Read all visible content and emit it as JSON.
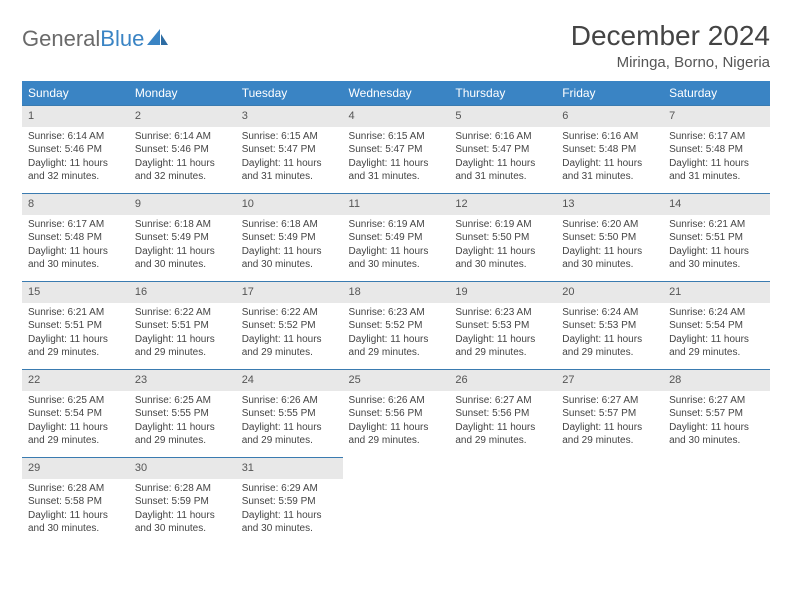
{
  "logo": {
    "text1": "General",
    "text2": "Blue"
  },
  "title": "December 2024",
  "location": "Miringa, Borno, Nigeria",
  "colors": {
    "header_bg": "#3a84c4",
    "daynum_bg": "#e8e8e8",
    "row_border": "#3a7bb0",
    "text": "#444444"
  },
  "weekdays": [
    "Sunday",
    "Monday",
    "Tuesday",
    "Wednesday",
    "Thursday",
    "Friday",
    "Saturday"
  ],
  "weeks": [
    [
      {
        "n": "1",
        "sr": "Sunrise: 6:14 AM",
        "ss": "Sunset: 5:46 PM",
        "dl": "Daylight: 11 hours and 32 minutes."
      },
      {
        "n": "2",
        "sr": "Sunrise: 6:14 AM",
        "ss": "Sunset: 5:46 PM",
        "dl": "Daylight: 11 hours and 32 minutes."
      },
      {
        "n": "3",
        "sr": "Sunrise: 6:15 AM",
        "ss": "Sunset: 5:47 PM",
        "dl": "Daylight: 11 hours and 31 minutes."
      },
      {
        "n": "4",
        "sr": "Sunrise: 6:15 AM",
        "ss": "Sunset: 5:47 PM",
        "dl": "Daylight: 11 hours and 31 minutes."
      },
      {
        "n": "5",
        "sr": "Sunrise: 6:16 AM",
        "ss": "Sunset: 5:47 PM",
        "dl": "Daylight: 11 hours and 31 minutes."
      },
      {
        "n": "6",
        "sr": "Sunrise: 6:16 AM",
        "ss": "Sunset: 5:48 PM",
        "dl": "Daylight: 11 hours and 31 minutes."
      },
      {
        "n": "7",
        "sr": "Sunrise: 6:17 AM",
        "ss": "Sunset: 5:48 PM",
        "dl": "Daylight: 11 hours and 31 minutes."
      }
    ],
    [
      {
        "n": "8",
        "sr": "Sunrise: 6:17 AM",
        "ss": "Sunset: 5:48 PM",
        "dl": "Daylight: 11 hours and 30 minutes."
      },
      {
        "n": "9",
        "sr": "Sunrise: 6:18 AM",
        "ss": "Sunset: 5:49 PM",
        "dl": "Daylight: 11 hours and 30 minutes."
      },
      {
        "n": "10",
        "sr": "Sunrise: 6:18 AM",
        "ss": "Sunset: 5:49 PM",
        "dl": "Daylight: 11 hours and 30 minutes."
      },
      {
        "n": "11",
        "sr": "Sunrise: 6:19 AM",
        "ss": "Sunset: 5:49 PM",
        "dl": "Daylight: 11 hours and 30 minutes."
      },
      {
        "n": "12",
        "sr": "Sunrise: 6:19 AM",
        "ss": "Sunset: 5:50 PM",
        "dl": "Daylight: 11 hours and 30 minutes."
      },
      {
        "n": "13",
        "sr": "Sunrise: 6:20 AM",
        "ss": "Sunset: 5:50 PM",
        "dl": "Daylight: 11 hours and 30 minutes."
      },
      {
        "n": "14",
        "sr": "Sunrise: 6:21 AM",
        "ss": "Sunset: 5:51 PM",
        "dl": "Daylight: 11 hours and 30 minutes."
      }
    ],
    [
      {
        "n": "15",
        "sr": "Sunrise: 6:21 AM",
        "ss": "Sunset: 5:51 PM",
        "dl": "Daylight: 11 hours and 29 minutes."
      },
      {
        "n": "16",
        "sr": "Sunrise: 6:22 AM",
        "ss": "Sunset: 5:51 PM",
        "dl": "Daylight: 11 hours and 29 minutes."
      },
      {
        "n": "17",
        "sr": "Sunrise: 6:22 AM",
        "ss": "Sunset: 5:52 PM",
        "dl": "Daylight: 11 hours and 29 minutes."
      },
      {
        "n": "18",
        "sr": "Sunrise: 6:23 AM",
        "ss": "Sunset: 5:52 PM",
        "dl": "Daylight: 11 hours and 29 minutes."
      },
      {
        "n": "19",
        "sr": "Sunrise: 6:23 AM",
        "ss": "Sunset: 5:53 PM",
        "dl": "Daylight: 11 hours and 29 minutes."
      },
      {
        "n": "20",
        "sr": "Sunrise: 6:24 AM",
        "ss": "Sunset: 5:53 PM",
        "dl": "Daylight: 11 hours and 29 minutes."
      },
      {
        "n": "21",
        "sr": "Sunrise: 6:24 AM",
        "ss": "Sunset: 5:54 PM",
        "dl": "Daylight: 11 hours and 29 minutes."
      }
    ],
    [
      {
        "n": "22",
        "sr": "Sunrise: 6:25 AM",
        "ss": "Sunset: 5:54 PM",
        "dl": "Daylight: 11 hours and 29 minutes."
      },
      {
        "n": "23",
        "sr": "Sunrise: 6:25 AM",
        "ss": "Sunset: 5:55 PM",
        "dl": "Daylight: 11 hours and 29 minutes."
      },
      {
        "n": "24",
        "sr": "Sunrise: 6:26 AM",
        "ss": "Sunset: 5:55 PM",
        "dl": "Daylight: 11 hours and 29 minutes."
      },
      {
        "n": "25",
        "sr": "Sunrise: 6:26 AM",
        "ss": "Sunset: 5:56 PM",
        "dl": "Daylight: 11 hours and 29 minutes."
      },
      {
        "n": "26",
        "sr": "Sunrise: 6:27 AM",
        "ss": "Sunset: 5:56 PM",
        "dl": "Daylight: 11 hours and 29 minutes."
      },
      {
        "n": "27",
        "sr": "Sunrise: 6:27 AM",
        "ss": "Sunset: 5:57 PM",
        "dl": "Daylight: 11 hours and 29 minutes."
      },
      {
        "n": "28",
        "sr": "Sunrise: 6:27 AM",
        "ss": "Sunset: 5:57 PM",
        "dl": "Daylight: 11 hours and 30 minutes."
      }
    ],
    [
      {
        "n": "29",
        "sr": "Sunrise: 6:28 AM",
        "ss": "Sunset: 5:58 PM",
        "dl": "Daylight: 11 hours and 30 minutes."
      },
      {
        "n": "30",
        "sr": "Sunrise: 6:28 AM",
        "ss": "Sunset: 5:59 PM",
        "dl": "Daylight: 11 hours and 30 minutes."
      },
      {
        "n": "31",
        "sr": "Sunrise: 6:29 AM",
        "ss": "Sunset: 5:59 PM",
        "dl": "Daylight: 11 hours and 30 minutes."
      },
      null,
      null,
      null,
      null
    ]
  ]
}
